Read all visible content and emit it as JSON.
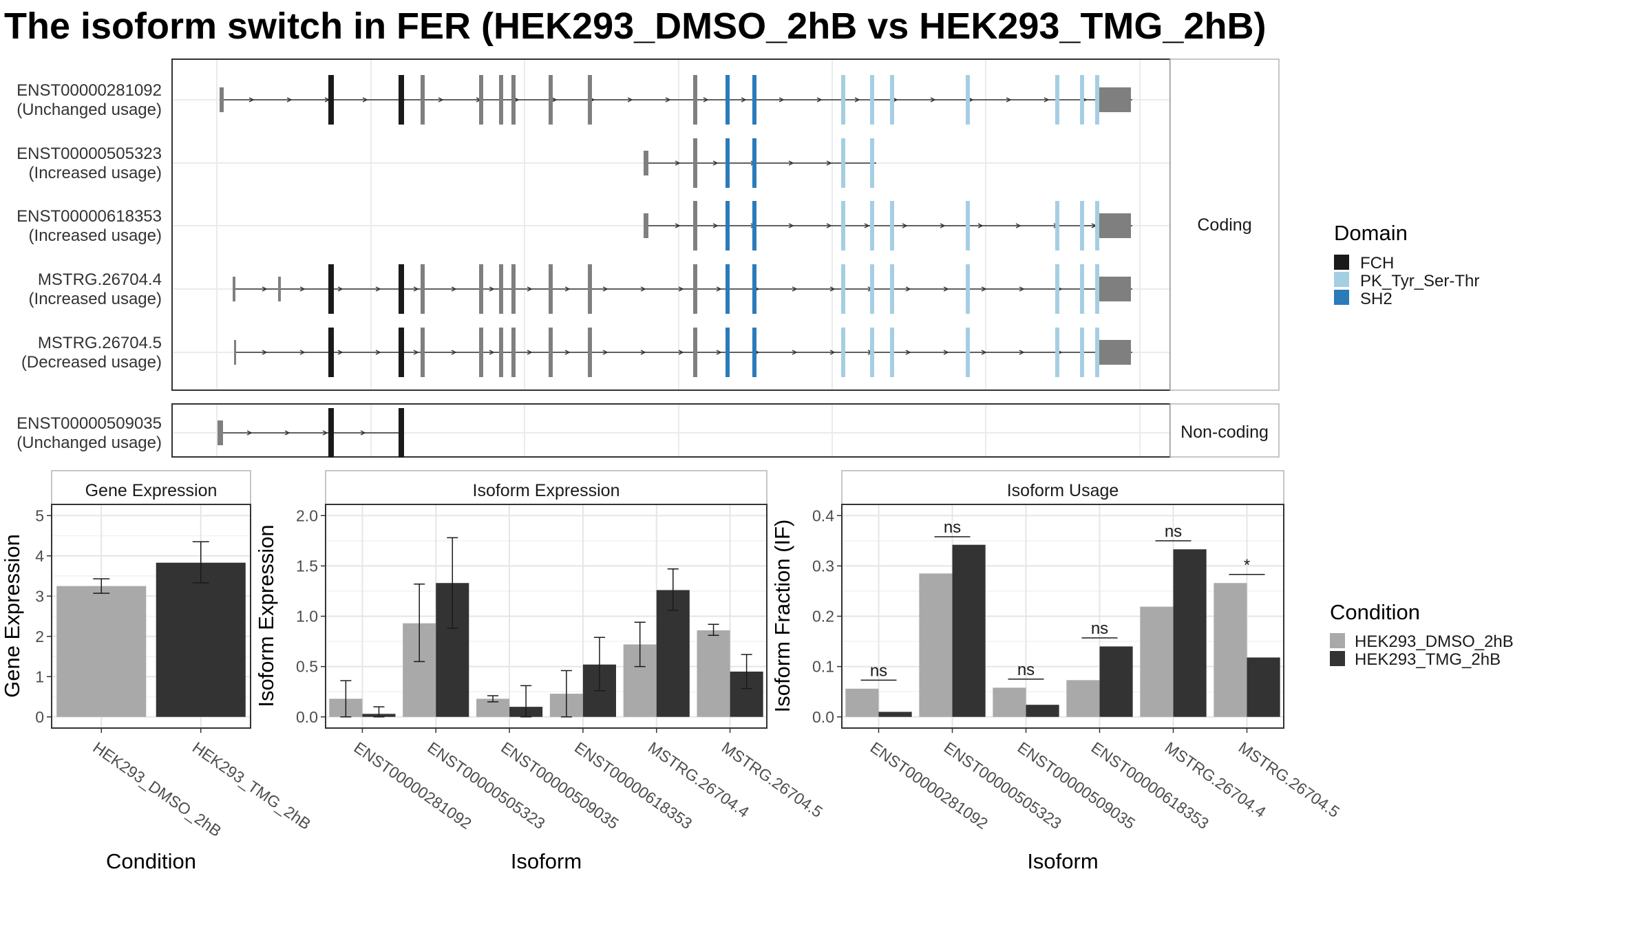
{
  "title": "The isoform switch in FER (HEK293_DMSO_2hB vs HEK293_TMG_2hB)",
  "transcript_panels": {
    "coding_label": "Coding",
    "noncoding_label": "Non-coding",
    "transcripts": [
      {
        "id": "ENST00000281092",
        "status": "(Unchanged usage)"
      },
      {
        "id": "ENST00000505323",
        "status": "(Increased usage)"
      },
      {
        "id": "ENST00000618353",
        "status": "(Increased usage)"
      },
      {
        "id": "MSTRG.26704.4",
        "status": "(Increased usage)"
      },
      {
        "id": "MSTRG.26704.5",
        "status": "(Decreased usage)"
      },
      {
        "id": "ENST00000509035",
        "status": "(Unchanged usage)"
      }
    ]
  },
  "domain_legend": {
    "title": "Domain",
    "items": [
      {
        "label": "FCH",
        "color": "#1a1a1a"
      },
      {
        "label": "PK_Tyr_Ser-Thr",
        "color": "#a6cee3"
      },
      {
        "label": "SH2",
        "color": "#2b7bb9"
      }
    ]
  },
  "condition_legend": {
    "title": "Condition",
    "items": [
      {
        "label": "HEK293_DMSO_2hB",
        "color": "#a9a9a9"
      },
      {
        "label": "HEK293_TMG_2hB",
        "color": "#333333"
      }
    ]
  },
  "chart_data": [
    {
      "type": "bar",
      "title": "Gene Expression",
      "xlabel": "Condition",
      "ylabel": "Gene Expression",
      "ylim": [
        0,
        5
      ],
      "yticks": [
        "0",
        "1",
        "2",
        "3",
        "4",
        "5"
      ],
      "categories": [
        "HEK293_DMSO_2hB",
        "HEK293_TMG_2hB"
      ],
      "values": [
        3.25,
        3.83
      ],
      "errors": [
        [
          3.07,
          3.43
        ],
        [
          3.33,
          4.35
        ]
      ]
    },
    {
      "type": "bar",
      "title": "Isoform Expression",
      "xlabel": "Isoform",
      "ylabel": "Isoform Expression",
      "ylim": [
        0,
        2.0
      ],
      "yticks": [
        "0.0",
        "0.5",
        "1.0",
        "1.5",
        "2.0"
      ],
      "categories": [
        "ENST00000281092",
        "ENST00000505323",
        "ENST00000509035",
        "ENST00000618353",
        "MSTRG.26704.4",
        "MSTRG.26704.5"
      ],
      "series": [
        {
          "name": "HEK293_DMSO_2hB",
          "values": [
            0.18,
            0.93,
            0.18,
            0.23,
            0.72,
            0.86
          ],
          "errors": [
            [
              0.0,
              0.36
            ],
            [
              0.55,
              1.32
            ],
            [
              0.15,
              0.21
            ],
            [
              0.0,
              0.46
            ],
            [
              0.5,
              0.94
            ],
            [
              0.81,
              0.92
            ]
          ]
        },
        {
          "name": "HEK293_TMG_2hB",
          "values": [
            0.03,
            1.33,
            0.1,
            0.52,
            1.26,
            0.45
          ],
          "errors": [
            [
              0.0,
              0.1
            ],
            [
              0.88,
              1.78
            ],
            [
              0.0,
              0.31
            ],
            [
              0.26,
              0.79
            ],
            [
              1.06,
              1.47
            ],
            [
              0.28,
              0.62
            ]
          ]
        }
      ]
    },
    {
      "type": "bar",
      "title": "Isoform Usage",
      "xlabel": "Isoform",
      "ylabel": "Isoform Fraction (IF)",
      "ylim": [
        0,
        0.4
      ],
      "yticks": [
        "0.0",
        "0.1",
        "0.2",
        "0.3",
        "0.4"
      ],
      "categories": [
        "ENST00000281092",
        "ENST00000505323",
        "ENST00000509035",
        "ENST00000618353",
        "MSTRG.26704.4",
        "MSTRG.26704.5"
      ],
      "series": [
        {
          "name": "HEK293_DMSO_2hB",
          "values": [
            0.056,
            0.285,
            0.058,
            0.073,
            0.219,
            0.266
          ]
        },
        {
          "name": "HEK293_TMG_2hB",
          "values": [
            0.01,
            0.342,
            0.024,
            0.14,
            0.333,
            0.118
          ]
        }
      ],
      "significance": [
        {
          "label": "ns",
          "y": 0.073
        },
        {
          "label": "ns",
          "y": 0.358
        },
        {
          "label": "ns",
          "y": 0.075
        },
        {
          "label": "ns",
          "y": 0.157
        },
        {
          "label": "ns",
          "y": 0.35
        },
        {
          "label": "*",
          "y": 0.283
        }
      ]
    }
  ]
}
